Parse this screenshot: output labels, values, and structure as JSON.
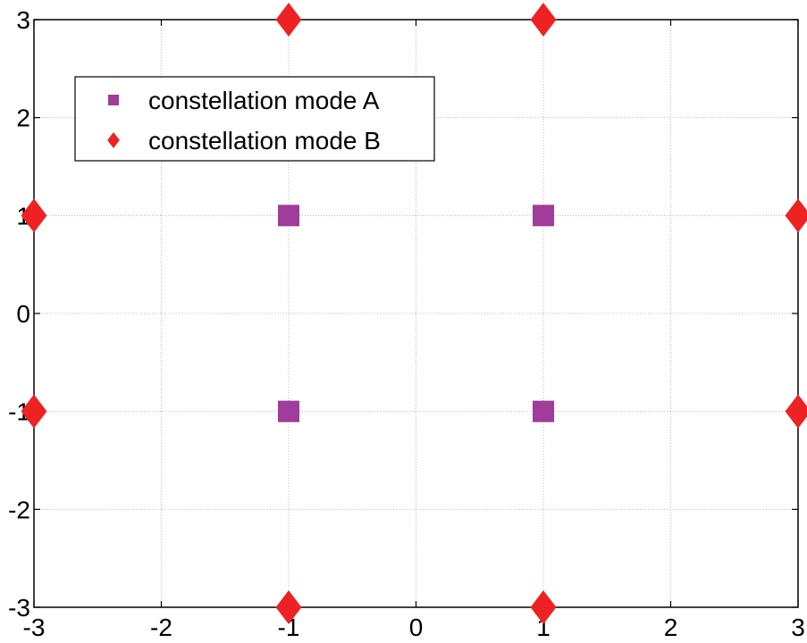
{
  "chart_data": {
    "type": "scatter",
    "title": "",
    "xlabel": "",
    "ylabel": "",
    "xlim": [
      -3,
      3
    ],
    "ylim": [
      -3,
      3
    ],
    "xticks": [
      -3,
      -2,
      -1,
      0,
      1,
      2,
      3
    ],
    "yticks": [
      -3,
      -2,
      -1,
      0,
      1,
      2,
      3
    ],
    "grid": true,
    "legend_position": "top-left",
    "series": [
      {
        "name": "constellation mode A",
        "marker": "square",
        "color": "#a03c9a",
        "points": [
          {
            "x": -1,
            "y": 1
          },
          {
            "x": 1,
            "y": 1
          },
          {
            "x": -1,
            "y": -1
          },
          {
            "x": 1,
            "y": -1
          }
        ]
      },
      {
        "name": "constellation mode B",
        "marker": "diamond",
        "color": "#ee2222",
        "points": [
          {
            "x": -1,
            "y": 3
          },
          {
            "x": 1,
            "y": 3
          },
          {
            "x": -3,
            "y": 1
          },
          {
            "x": 3,
            "y": 1
          },
          {
            "x": -3,
            "y": -1
          },
          {
            "x": 3,
            "y": -1
          },
          {
            "x": -1,
            "y": -3
          },
          {
            "x": 1,
            "y": -3
          }
        ]
      }
    ]
  }
}
